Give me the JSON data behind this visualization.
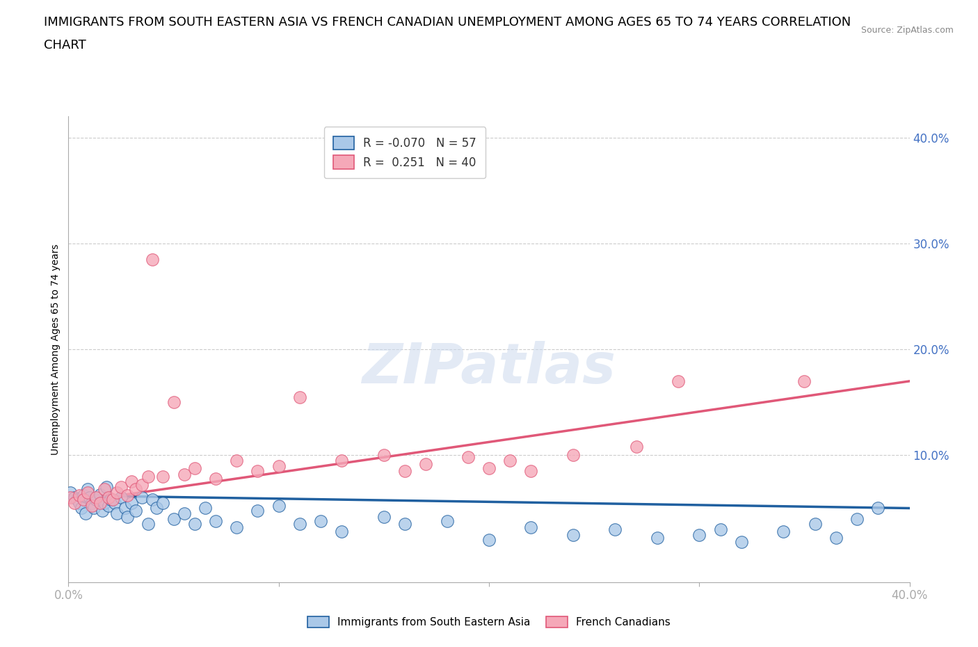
{
  "title_line1": "IMMIGRANTS FROM SOUTH EASTERN ASIA VS FRENCH CANADIAN UNEMPLOYMENT AMONG AGES 65 TO 74 YEARS CORRELATION",
  "title_line2": "CHART",
  "source": "Source: ZipAtlas.com",
  "ylabel": "Unemployment Among Ages 65 to 74 years",
  "watermark": "ZIPatlas",
  "xlim": [
    0.0,
    0.4
  ],
  "ylim": [
    -0.02,
    0.42
  ],
  "yticks": [
    0.0,
    0.1,
    0.2,
    0.3,
    0.4
  ],
  "yticklabels": [
    "",
    "10.0%",
    "20.0%",
    "30.0%",
    "40.0%"
  ],
  "xticks": [
    0.0,
    0.1,
    0.2,
    0.3,
    0.4
  ],
  "xticklabels": [
    "0.0%",
    "",
    "",
    "",
    "40.0%"
  ],
  "blue_R": -0.07,
  "blue_N": 57,
  "pink_R": 0.251,
  "pink_N": 40,
  "blue_color": "#aac8e8",
  "blue_line_color": "#2060a0",
  "pink_color": "#f5a8b8",
  "pink_line_color": "#e05878",
  "blue_scatter_x": [
    0.001,
    0.003,
    0.004,
    0.005,
    0.006,
    0.007,
    0.008,
    0.009,
    0.01,
    0.011,
    0.012,
    0.013,
    0.015,
    0.016,
    0.017,
    0.018,
    0.019,
    0.02,
    0.022,
    0.023,
    0.025,
    0.027,
    0.028,
    0.03,
    0.032,
    0.035,
    0.038,
    0.04,
    0.042,
    0.045,
    0.05,
    0.055,
    0.06,
    0.065,
    0.07,
    0.08,
    0.09,
    0.1,
    0.11,
    0.12,
    0.13,
    0.15,
    0.16,
    0.18,
    0.2,
    0.22,
    0.24,
    0.26,
    0.28,
    0.3,
    0.31,
    0.32,
    0.34,
    0.355,
    0.365,
    0.375,
    0.385
  ],
  "blue_scatter_y": [
    0.065,
    0.06,
    0.058,
    0.055,
    0.05,
    0.062,
    0.045,
    0.068,
    0.06,
    0.055,
    0.05,
    0.058,
    0.063,
    0.048,
    0.055,
    0.07,
    0.052,
    0.058,
    0.055,
    0.045,
    0.06,
    0.05,
    0.042,
    0.055,
    0.048,
    0.06,
    0.035,
    0.058,
    0.05,
    0.055,
    0.04,
    0.045,
    0.035,
    0.05,
    0.038,
    0.032,
    0.048,
    0.052,
    0.035,
    0.038,
    0.028,
    0.042,
    0.035,
    0.038,
    0.02,
    0.032,
    0.025,
    0.03,
    0.022,
    0.025,
    0.03,
    0.018,
    0.028,
    0.035,
    0.022,
    0.04,
    0.05
  ],
  "pink_scatter_x": [
    0.001,
    0.003,
    0.005,
    0.007,
    0.009,
    0.011,
    0.013,
    0.015,
    0.017,
    0.019,
    0.021,
    0.023,
    0.025,
    0.028,
    0.03,
    0.032,
    0.035,
    0.038,
    0.04,
    0.045,
    0.05,
    0.055,
    0.06,
    0.07,
    0.08,
    0.09,
    0.1,
    0.11,
    0.13,
    0.15,
    0.16,
    0.17,
    0.19,
    0.2,
    0.21,
    0.22,
    0.24,
    0.27,
    0.29,
    0.35
  ],
  "pink_scatter_y": [
    0.06,
    0.055,
    0.062,
    0.058,
    0.065,
    0.052,
    0.06,
    0.055,
    0.068,
    0.06,
    0.058,
    0.065,
    0.07,
    0.062,
    0.075,
    0.068,
    0.072,
    0.08,
    0.285,
    0.08,
    0.15,
    0.082,
    0.088,
    0.078,
    0.095,
    0.085,
    0.09,
    0.155,
    0.095,
    0.1,
    0.085,
    0.092,
    0.098,
    0.088,
    0.095,
    0.085,
    0.1,
    0.108,
    0.17,
    0.17
  ],
  "blue_line_x": [
    0.0,
    0.4
  ],
  "blue_line_y": [
    0.062,
    0.05
  ],
  "pink_line_x": [
    0.0,
    0.4
  ],
  "pink_line_y": [
    0.055,
    0.17
  ],
  "background_color": "#ffffff",
  "grid_color": "#cccccc",
  "title_fontsize": 13,
  "tick_color": "#4472c4",
  "label_fontsize": 10,
  "source_color": "#888888"
}
